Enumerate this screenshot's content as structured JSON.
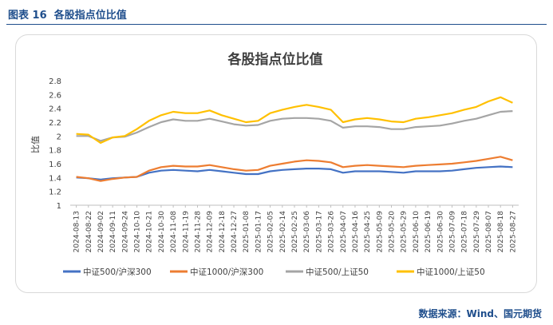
{
  "figure": {
    "label": "图表 16",
    "caption": "各股指点位比值",
    "source": "数据来源：Wind、国元期货"
  },
  "chart_data": {
    "type": "line",
    "title": "各股指点位比值",
    "ylabel": "比值",
    "xlabel": "",
    "ylim": [
      1,
      2.8
    ],
    "yticks": [
      "2.8",
      "2.6",
      "2.4",
      "2.2",
      "2",
      "1.8",
      "1.6",
      "1.4",
      "1.2",
      "1"
    ],
    "grid": false,
    "legend_position": "bottom",
    "x": [
      "2024-08-13",
      "2024-08-22",
      "2024-09-02",
      "2024-09-11",
      "2024-09-24",
      "2024-10-10",
      "2024-10-21",
      "2024-10-30",
      "2024-11-08",
      "2024-11-19",
      "2024-11-28",
      "2024-12-09",
      "2024-12-18",
      "2024-12-27",
      "2025-01-08",
      "2025-01-17",
      "2025-02-05",
      "2025-02-14",
      "2025-02-25",
      "2025-03-06",
      "2025-03-17",
      "2025-03-26",
      "2025-04-07",
      "2025-04-16",
      "2025-04-25",
      "2025-05-09",
      "2025-05-20",
      "2025-05-29",
      "2025-06-10",
      "2025-06-19",
      "2025-06-30",
      "2025-07-09",
      "2025-07-18",
      "2025-07-29",
      "2025-08-07",
      "2025-08-18",
      "2025-08-27"
    ],
    "series": [
      {
        "name": "中证500/沪深300",
        "color": "#4472c4",
        "values": [
          1.4,
          1.39,
          1.37,
          1.39,
          1.4,
          1.41,
          1.47,
          1.5,
          1.51,
          1.5,
          1.49,
          1.51,
          1.49,
          1.47,
          1.45,
          1.45,
          1.49,
          1.51,
          1.52,
          1.53,
          1.53,
          1.52,
          1.47,
          1.49,
          1.49,
          1.49,
          1.48,
          1.47,
          1.49,
          1.49,
          1.49,
          1.5,
          1.52,
          1.54,
          1.55,
          1.56,
          1.55
        ]
      },
      {
        "name": "中证1000/沪深300",
        "color": "#ed7d31",
        "values": [
          1.41,
          1.39,
          1.35,
          1.38,
          1.4,
          1.41,
          1.5,
          1.55,
          1.57,
          1.56,
          1.56,
          1.58,
          1.55,
          1.52,
          1.5,
          1.51,
          1.57,
          1.6,
          1.63,
          1.65,
          1.64,
          1.62,
          1.55,
          1.57,
          1.58,
          1.57,
          1.56,
          1.55,
          1.57,
          1.58,
          1.59,
          1.6,
          1.62,
          1.64,
          1.67,
          1.7,
          1.65
        ]
      },
      {
        "name": "中证500/上证50",
        "color": "#a5a5a5",
        "values": [
          2.0,
          2.0,
          1.93,
          1.98,
          1.99,
          2.05,
          2.13,
          2.2,
          2.24,
          2.22,
          2.22,
          2.25,
          2.21,
          2.17,
          2.15,
          2.16,
          2.22,
          2.25,
          2.26,
          2.26,
          2.25,
          2.22,
          2.12,
          2.14,
          2.14,
          2.13,
          2.1,
          2.1,
          2.13,
          2.14,
          2.15,
          2.18,
          2.22,
          2.25,
          2.3,
          2.35,
          2.36
        ]
      },
      {
        "name": "中证1000/上证50",
        "color": "#ffc000",
        "values": [
          2.03,
          2.02,
          1.9,
          1.98,
          2.0,
          2.1,
          2.22,
          2.3,
          2.35,
          2.33,
          2.33,
          2.37,
          2.3,
          2.25,
          2.2,
          2.22,
          2.33,
          2.38,
          2.42,
          2.45,
          2.42,
          2.38,
          2.2,
          2.24,
          2.26,
          2.24,
          2.21,
          2.2,
          2.25,
          2.27,
          2.3,
          2.33,
          2.38,
          2.42,
          2.5,
          2.56,
          2.48
        ]
      }
    ]
  }
}
